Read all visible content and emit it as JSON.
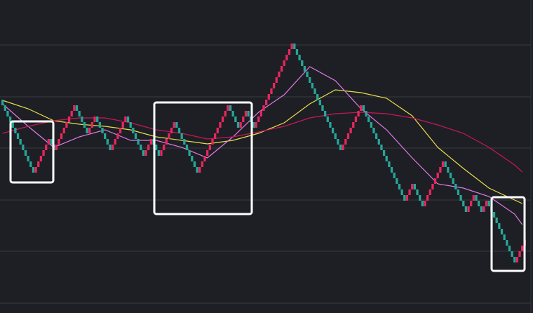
{
  "chart_data": {
    "type": "renko",
    "brick_size": 8,
    "up_color": "#e8275f",
    "down_color": "#26a69a",
    "xlim": [
      -1,
      205
    ],
    "ylim": [
      0,
      446
    ],
    "yticks": [
      382,
      308,
      235,
      161,
      88,
      14
    ],
    "grid": true,
    "values": [
      296,
      288,
      280,
      272,
      264,
      256,
      248,
      240,
      232,
      224,
      216,
      208,
      200,
      208,
      216,
      224,
      232,
      240,
      248,
      240,
      232,
      240,
      248,
      256,
      264,
      272,
      280,
      288,
      296,
      288,
      280,
      272,
      264,
      256,
      264,
      272,
      280,
      272,
      264,
      256,
      248,
      240,
      232,
      240,
      248,
      256,
      264,
      272,
      280,
      272,
      264,
      256,
      248,
      240,
      232,
      224,
      232,
      240,
      248,
      240,
      232,
      224,
      232,
      240,
      248,
      256,
      264,
      272,
      264,
      256,
      248,
      240,
      232,
      224,
      216,
      208,
      200,
      208,
      216,
      224,
      232,
      240,
      248,
      256,
      264,
      272,
      280,
      288,
      296,
      288,
      280,
      272,
      264,
      272,
      280,
      288,
      280,
      272,
      264,
      272,
      280,
      288,
      296,
      304,
      312,
      320,
      328,
      336,
      344,
      352,
      360,
      368,
      376,
      384,
      376,
      368,
      360,
      352,
      344,
      336,
      328,
      320,
      312,
      304,
      296,
      288,
      280,
      272,
      264,
      256,
      248,
      240,
      232,
      240,
      248,
      256,
      264,
      272,
      280,
      288,
      296,
      288,
      280,
      272,
      264,
      256,
      248,
      240,
      232,
      224,
      216,
      208,
      200,
      192,
      184,
      176,
      168,
      160,
      168,
      176,
      184,
      176,
      168,
      160,
      152,
      160,
      168,
      176,
      184,
      192,
      200,
      208,
      216,
      208,
      200,
      192,
      184,
      176,
      168,
      160,
      152,
      144,
      152,
      160,
      168,
      160,
      152,
      144,
      152,
      160,
      152,
      144,
      136,
      128,
      120,
      112,
      104,
      96,
      88,
      80,
      72,
      80,
      88,
      96,
      104
    ],
    "series": [
      {
        "color": "#e8e04c",
        "x": [
          0,
          10,
          20,
          30,
          40,
          50,
          60,
          70,
          80,
          90,
          100,
          110,
          120,
          130,
          140,
          150,
          160,
          170,
          180,
          190,
          200,
          203
        ],
        "values": [
          303,
          291,
          274,
          269,
          266,
          261,
          251,
          246,
          241,
          246,
          256,
          271,
          298,
          318,
          314,
          306,
          281,
          236,
          206,
          178,
          161,
          156
        ]
      },
      {
        "color": "#e07ae8",
        "x": [
          0,
          10,
          20,
          30,
          40,
          50,
          60,
          70,
          80,
          90,
          100,
          110,
          120,
          130,
          140,
          150,
          160,
          170,
          180,
          190,
          200,
          203
        ],
        "values": [
          298,
          266,
          236,
          251,
          261,
          246,
          246,
          236,
          221,
          251,
          286,
          311,
          351,
          331,
          291,
          261,
          221,
          184,
          178,
          166,
          141,
          126
        ]
      },
      {
        "color": "#c8175a",
        "x": [
          0,
          10,
          20,
          30,
          40,
          50,
          60,
          70,
          80,
          90,
          100,
          110,
          120,
          130,
          140,
          150,
          160,
          170,
          180,
          190,
          200,
          203
        ],
        "values": [
          256,
          266,
          274,
          278,
          278,
          271,
          261,
          256,
          248,
          251,
          258,
          266,
          278,
          284,
          286,
          284,
          278,
          268,
          256,
          236,
          211,
          201
        ]
      }
    ]
  }
}
